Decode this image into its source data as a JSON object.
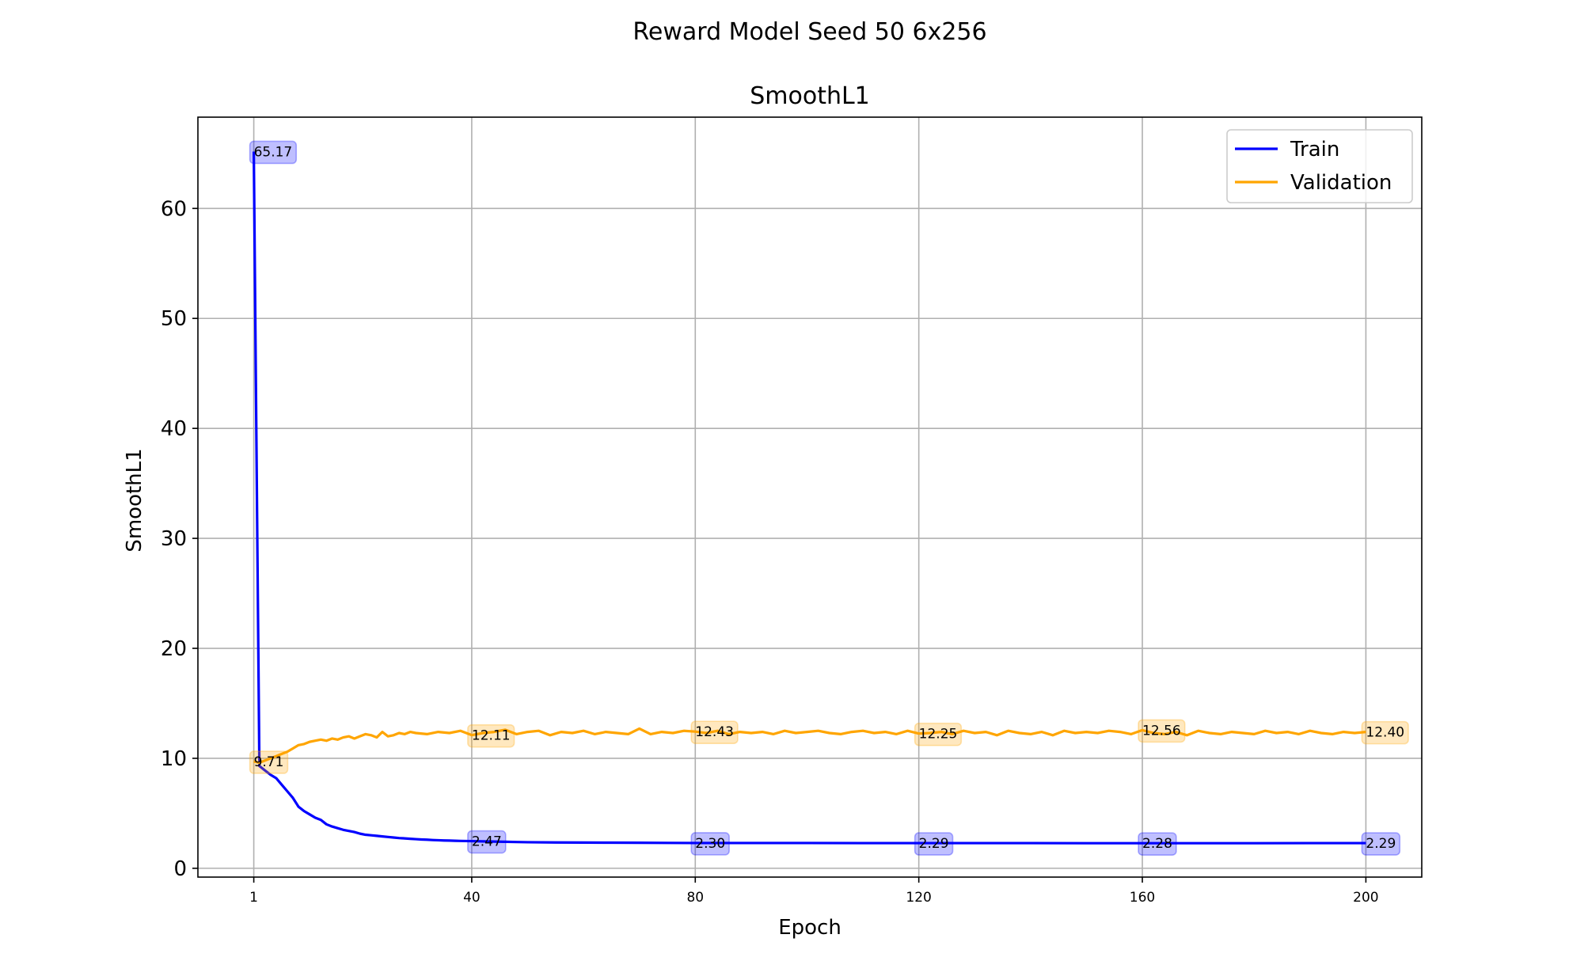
{
  "suptitle": "Reward Model Seed 50 6x256",
  "chart_data": {
    "type": "line",
    "title": "SmoothL1",
    "xlabel": "Epoch",
    "ylabel": "SmoothL1",
    "xlim": [
      -9,
      210
    ],
    "ylim": [
      -0.8,
      68.3
    ],
    "xticks": [
      1,
      40,
      80,
      120,
      160,
      200
    ],
    "yticks": [
      0,
      10,
      20,
      30,
      40,
      50,
      60
    ],
    "grid": true,
    "legend_position": "top-right",
    "series": [
      {
        "name": "Train",
        "color": "#0000ff",
        "x": [
          1,
          2,
          3,
          4,
          5,
          6,
          7,
          8,
          9,
          10,
          11,
          12,
          13,
          14,
          15,
          16,
          17,
          18,
          19,
          20,
          21,
          22,
          23,
          24,
          25,
          26,
          27,
          28,
          29,
          30,
          31,
          32,
          33,
          34,
          35,
          36,
          37,
          38,
          39,
          40,
          42,
          44,
          46,
          48,
          50,
          55,
          60,
          65,
          70,
          75,
          80,
          90,
          100,
          110,
          120,
          130,
          140,
          150,
          160,
          170,
          180,
          190,
          200
        ],
        "y": [
          65.17,
          9.3,
          8.9,
          8.5,
          8.2,
          7.6,
          7.0,
          6.4,
          5.6,
          5.2,
          4.9,
          4.6,
          4.4,
          4.0,
          3.8,
          3.65,
          3.5,
          3.4,
          3.3,
          3.15,
          3.05,
          3.0,
          2.95,
          2.9,
          2.85,
          2.8,
          2.75,
          2.72,
          2.68,
          2.65,
          2.62,
          2.6,
          2.57,
          2.55,
          2.53,
          2.52,
          2.5,
          2.49,
          2.48,
          2.47,
          2.45,
          2.43,
          2.41,
          2.39,
          2.37,
          2.35,
          2.34,
          2.33,
          2.32,
          2.31,
          2.3,
          2.3,
          2.3,
          2.29,
          2.29,
          2.29,
          2.29,
          2.28,
          2.28,
          2.28,
          2.28,
          2.29,
          2.29
        ]
      },
      {
        "name": "Validation",
        "color": "#ffa500",
        "x": [
          1,
          2,
          3,
          4,
          5,
          6,
          7,
          8,
          9,
          10,
          11,
          12,
          13,
          14,
          15,
          16,
          17,
          18,
          19,
          20,
          21,
          22,
          23,
          24,
          25,
          26,
          27,
          28,
          29,
          30,
          32,
          34,
          36,
          38,
          40,
          42,
          44,
          46,
          48,
          50,
          52,
          54,
          56,
          58,
          60,
          62,
          64,
          66,
          68,
          70,
          72,
          74,
          76,
          78,
          80,
          82,
          84,
          86,
          88,
          90,
          92,
          94,
          96,
          98,
          100,
          102,
          104,
          106,
          108,
          110,
          112,
          114,
          116,
          118,
          120,
          122,
          124,
          126,
          128,
          130,
          132,
          134,
          136,
          138,
          140,
          142,
          144,
          146,
          148,
          150,
          152,
          154,
          156,
          158,
          160,
          162,
          164,
          166,
          168,
          170,
          172,
          174,
          176,
          178,
          180,
          182,
          184,
          186,
          188,
          190,
          192,
          194,
          196,
          198,
          200
        ],
        "y": [
          9.71,
          9.6,
          9.8,
          10.0,
          10.2,
          10.4,
          10.6,
          10.9,
          11.2,
          11.3,
          11.5,
          11.6,
          11.7,
          11.6,
          11.8,
          11.7,
          11.9,
          12.0,
          11.8,
          12.0,
          12.2,
          12.1,
          11.9,
          12.4,
          12.0,
          12.1,
          12.3,
          12.2,
          12.4,
          12.3,
          12.2,
          12.4,
          12.3,
          12.5,
          12.11,
          12.3,
          12.4,
          12.6,
          12.2,
          12.4,
          12.5,
          12.1,
          12.4,
          12.3,
          12.5,
          12.2,
          12.4,
          12.3,
          12.2,
          12.7,
          12.2,
          12.4,
          12.3,
          12.5,
          12.43,
          12.3,
          12.5,
          12.2,
          12.4,
          12.3,
          12.4,
          12.2,
          12.5,
          12.3,
          12.4,
          12.5,
          12.3,
          12.2,
          12.4,
          12.5,
          12.3,
          12.4,
          12.2,
          12.5,
          12.25,
          12.3,
          12.4,
          12.2,
          12.5,
          12.3,
          12.4,
          12.1,
          12.5,
          12.3,
          12.2,
          12.4,
          12.1,
          12.5,
          12.3,
          12.4,
          12.3,
          12.5,
          12.4,
          12.2,
          12.56,
          12.3,
          12.2,
          12.4,
          12.1,
          12.5,
          12.3,
          12.2,
          12.4,
          12.3,
          12.2,
          12.5,
          12.3,
          12.4,
          12.2,
          12.5,
          12.3,
          12.2,
          12.4,
          12.3,
          12.4
        ]
      }
    ],
    "annotations": [
      {
        "series": "Train",
        "x": 1,
        "y": 65.17,
        "label": "65.17"
      },
      {
        "series": "Train",
        "x": 40,
        "y": 2.47,
        "label": "2.47"
      },
      {
        "series": "Train",
        "x": 80,
        "y": 2.3,
        "label": "2.30"
      },
      {
        "series": "Train",
        "x": 120,
        "y": 2.29,
        "label": "2.29"
      },
      {
        "series": "Train",
        "x": 160,
        "y": 2.28,
        "label": "2.28"
      },
      {
        "series": "Train",
        "x": 200,
        "y": 2.29,
        "label": "2.29"
      },
      {
        "series": "Validation",
        "x": 1,
        "y": 9.71,
        "label": "9.71"
      },
      {
        "series": "Validation",
        "x": 40,
        "y": 12.11,
        "label": "12.11"
      },
      {
        "series": "Validation",
        "x": 80,
        "y": 12.43,
        "label": "12.43"
      },
      {
        "series": "Validation",
        "x": 120,
        "y": 12.25,
        "label": "12.25"
      },
      {
        "series": "Validation",
        "x": 160,
        "y": 12.56,
        "label": "12.56"
      },
      {
        "series": "Validation",
        "x": 200,
        "y": 12.4,
        "label": "12.40"
      }
    ]
  }
}
